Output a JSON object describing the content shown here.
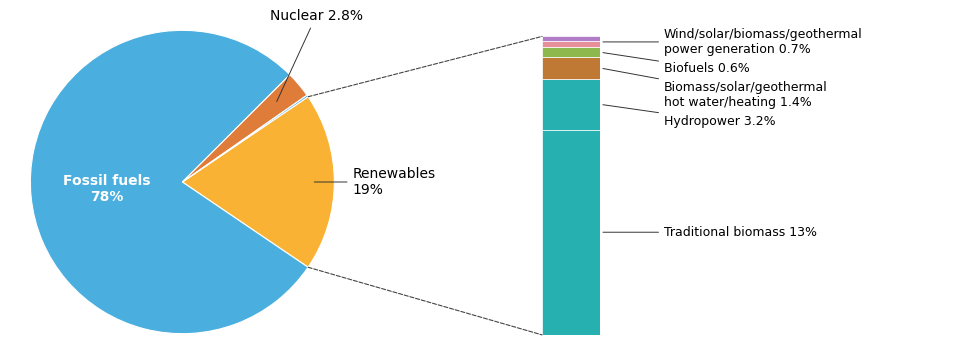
{
  "chart_data": [
    {
      "type": "pie",
      "categories": [
        "Renewables\n19%",
        "Fossil fuels\n78%",
        "Nuclear 2.8%",
        null
      ],
      "values": [
        19,
        78,
        2.8,
        0.2
      ],
      "colors": [
        "#f9b234",
        "#4aaede",
        "#e07c3a",
        "#4aaede"
      ]
    },
    {
      "type": "bar",
      "stacked": true,
      "categories": [
        null
      ],
      "series": [
        {
          "name": "Traditional biomass 13%",
          "values": [
            13.0
          ],
          "color": "#27b0b0"
        },
        {
          "name": "Hydropower 3.2%",
          "values": [
            3.2
          ],
          "color": "#27b0b0"
        },
        {
          "name": "Biomass/solar/geothermal\nhot water/heating 1.4%",
          "values": [
            1.4
          ],
          "color": "#c07835"
        },
        {
          "name": "Biofuels 0.6%",
          "values": [
            0.6
          ],
          "color": "#8db84e"
        },
        {
          "name": "Wind/solar/biomass/geothermal\npower generation 0.7%",
          "values": [
            0.4
          ],
          "color": "#e8909a"
        },
        {
          "values": [
            0.3
          ],
          "color": "#b07cc6"
        }
      ],
      "ylim": [
        0,
        18.9
      ],
      "tick_labels": false
    }
  ]
}
